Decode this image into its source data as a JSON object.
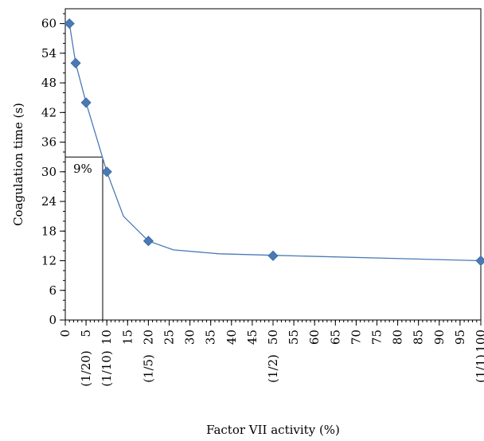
{
  "chart_data": {
    "type": "scatter",
    "title": "",
    "xlabel": "Factor VII activity (%)",
    "ylabel": "Coagulation time (s)",
    "xlim": [
      0,
      100
    ],
    "ylim": [
      0,
      63
    ],
    "x_ticks": [
      0,
      5,
      10,
      15,
      20,
      25,
      30,
      35,
      40,
      45,
      50,
      55,
      60,
      65,
      70,
      75,
      80,
      85,
      90,
      95,
      100
    ],
    "x_tick_labels": [
      "0",
      "5",
      "10",
      "15",
      "20",
      "25",
      "30",
      "35",
      "40",
      "45",
      "50",
      "55",
      "60",
      "65",
      "70",
      "75",
      "80",
      "85",
      "90",
      "95",
      "100"
    ],
    "x_minor_step": 1,
    "y_ticks": [
      0,
      6,
      12,
      18,
      24,
      30,
      36,
      42,
      48,
      54,
      60
    ],
    "y_tick_labels": [
      "0",
      "6",
      "12",
      "18",
      "24",
      "30",
      "36",
      "42",
      "48",
      "54",
      "60"
    ],
    "y_minor_step": 2,
    "grid": false,
    "legend": "none",
    "series": [
      {
        "values_x": [
          1,
          2.5,
          5,
          10,
          20,
          50,
          100
        ],
        "values_y": [
          60,
          52,
          44,
          30,
          16,
          13,
          12
        ],
        "marker": "diamond",
        "color": "#4a7ab5"
      }
    ],
    "fit_curve": {
      "x": [
        1,
        2.5,
        5,
        10,
        14,
        20,
        26,
        37,
        50,
        100
      ],
      "y": [
        60,
        52,
        44,
        30,
        21,
        16,
        14.2,
        13.4,
        13.1,
        12
      ],
      "color": "#4a7ab5"
    },
    "dilution_labels": [
      {
        "x": 5,
        "text": "(1/20)"
      },
      {
        "x": 10,
        "text": "(1/10)"
      },
      {
        "x": 20,
        "text": "(1/5)"
      },
      {
        "x": 50,
        "text": "(1/2)"
      },
      {
        "x": 100,
        "text": "(1/1)"
      }
    ],
    "reference": {
      "x": 9,
      "y": 33,
      "label": "9%"
    }
  }
}
